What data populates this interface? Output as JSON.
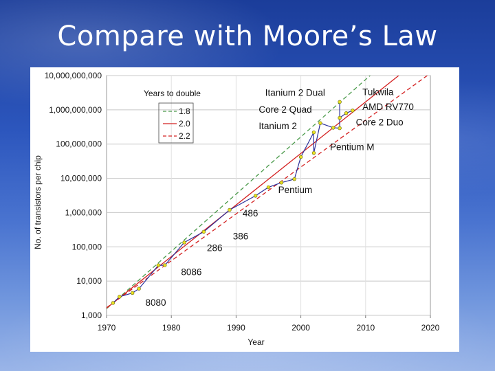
{
  "slide": {
    "title": "Compare with Moore’s Law"
  },
  "chart_data": {
    "type": "line",
    "title": "",
    "xlabel": "Year",
    "ylabel": "No. of transistors per chip",
    "x_ticks": [
      "1970",
      "1980",
      "1990",
      "2000",
      "2010",
      "2020"
    ],
    "y_ticks": [
      "1,000",
      "10,000",
      "100,000",
      "1,000,000",
      "10,000,000",
      "100,000,000",
      "1,000,000,000",
      "10,000,000,000"
    ],
    "xlim": [
      1970,
      2020
    ],
    "ylim": [
      1000,
      10000000000
    ],
    "y_scale": "log",
    "legend": {
      "title": "Years to double",
      "placement": "top-left",
      "entries": [
        {
          "label": "1.8",
          "color": "#4a9a4a",
          "dash": "dashed"
        },
        {
          "label": "2.0",
          "color": "#d42020",
          "dash": "solid"
        },
        {
          "label": "2.2",
          "color": "#d42020",
          "dash": "dashed"
        }
      ]
    },
    "reference_lines": [
      {
        "doubling_years": 1.8,
        "color": "#4a9a4a",
        "dash": "dashed",
        "anchor_x": 1971,
        "anchor_y": 2300
      },
      {
        "doubling_years": 2.0,
        "color": "#d42020",
        "dash": "solid",
        "anchor_x": 1971,
        "anchor_y": 2300
      },
      {
        "doubling_years": 2.2,
        "color": "#d42020",
        "dash": "dashed",
        "anchor_x": 1971,
        "anchor_y": 2300
      }
    ],
    "series": [
      {
        "color": "#2b2f9a",
        "marker_color": "#e8e020",
        "x": [
          1971,
          1972,
          1974,
          1975,
          1978,
          1979,
          1982,
          1985,
          1989,
          1993,
          1995,
          1997,
          1999,
          2000,
          2002,
          2002,
          2003,
          2005,
          2006,
          2006,
          2006,
          2007,
          2008
        ],
        "y": [
          2300,
          3500,
          4500,
          6000,
          29000,
          29000,
          134000,
          275000,
          1200000,
          3100000,
          5500000,
          7500000,
          9500000,
          42000000,
          220000000,
          55000000,
          410000000,
          300000000,
          291000000,
          1700000000,
          582000000,
          800000000,
          956000000
        ]
      }
    ],
    "annotations": [
      {
        "text": "8080",
        "x": 1976.0,
        "y": 2300
      },
      {
        "text": "8086",
        "x": 1981.5,
        "y": 18000
      },
      {
        "text": "286",
        "x": 1985.5,
        "y": 90000
      },
      {
        "text": "386",
        "x": 1989.5,
        "y": 200000
      },
      {
        "text": "486",
        "x": 1991.0,
        "y": 930000
      },
      {
        "text": "Pentium",
        "x": 1996.5,
        "y": 4500000
      },
      {
        "text": "Pentium M",
        "x": 2004.5,
        "y": 80000000
      },
      {
        "text": "Itanium 2",
        "x": 1993.5,
        "y": 330000000
      },
      {
        "text": "Core 2 Quad",
        "x": 1993.5,
        "y": 1000000000
      },
      {
        "text": "Itanium 2 Dual",
        "x": 1994.5,
        "y": 3100000000
      },
      {
        "text": "Tukwila",
        "x": 2009.5,
        "y": 3200000000
      },
      {
        "text": "AMD RV770",
        "x": 2009.5,
        "y": 1200000000
      },
      {
        "text": "Core 2 Duo",
        "x": 2008.5,
        "y": 420000000
      }
    ],
    "grid": true
  }
}
